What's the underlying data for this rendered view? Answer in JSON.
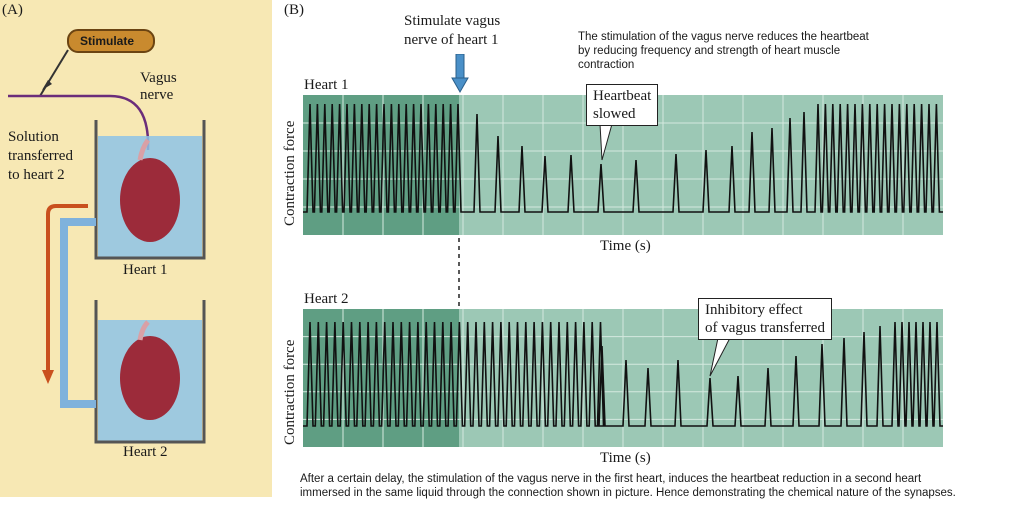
{
  "panel_a": {
    "label": "(A)",
    "stimulate_label": "Stimulate",
    "vagus_label_line1": "Vagus",
    "vagus_label_line2": "nerve",
    "solution_line1": "Solution",
    "solution_line2": "transferred",
    "solution_line3": "to heart 2",
    "heart1_label": "Heart 1",
    "heart2_label": "Heart 2",
    "colors": {
      "background": "#f7e8b4",
      "liquid": "#8ec3e6",
      "heart": "#9c2b3a",
      "tube": "#c9501e",
      "stim_box": "#c98a2e"
    }
  },
  "panel_b": {
    "label": "(B)",
    "stim_line1": "Stimulate vagus",
    "stim_line2": "nerve of heart 1",
    "note_line1": "The stimulation of the vagus nerve reduces the heartbeat",
    "note_line2": "by reducing frequency and strength of heart muscle",
    "note_line3": "contraction",
    "trace1_title": "Heart 1",
    "trace2_title": "Heart 2",
    "ylabel": "Contraction force",
    "xlabel": "Time (s)",
    "callout1_line1": "Heartbeat",
    "callout1_line2": "slowed",
    "callout2_line1": "Inhibitory effect",
    "callout2_line2": "of vagus transferred",
    "caption_line1": "After a certain delay, the stimulation of the vagus nerve in the first heart, induces the heartbeat reduction in a second heart",
    "caption_line2": "immersed in the same liquid through the connection shown in picture. Hence demonstrating the chemical nature of the synapses.",
    "colors": {
      "plot_bg": "#9cc8b5",
      "plot_dark": "#5f9e83",
      "arrow": "#4a90c8"
    }
  }
}
